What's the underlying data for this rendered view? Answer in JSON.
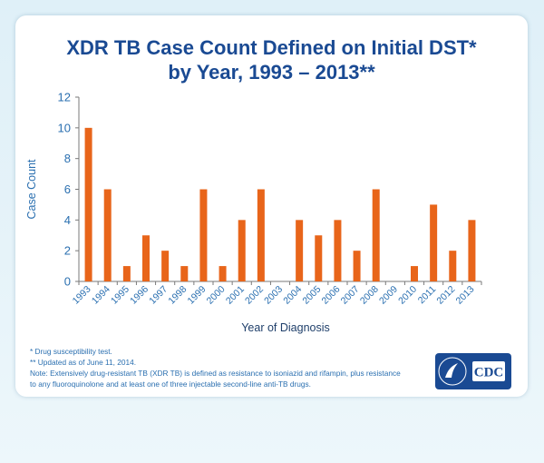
{
  "header": {
    "title_line1": "XDR TB Case Count Defined on Initial DST*",
    "title_line2": "by Year, 1993 – 2013**"
  },
  "footnotes": {
    "note1": "* Drug susceptibility test.",
    "note2": "** Updated as of June 11, 2014.",
    "note3": "Note: Extensively drug-resistant TB (XDR TB) is defined as resistance to isoniazid and rifampin, plus resistance",
    "note4": "to any fluoroquinolone and at least one of three injectable second-line anti-TB drugs."
  },
  "logo": {
    "text": "CDC"
  },
  "colors": {
    "bar": "#e8651a",
    "title": "#1a4a93",
    "text": "#2a6fb0",
    "axis": "#7a7a7a"
  },
  "chart_data": {
    "type": "bar",
    "categories": [
      "1993",
      "1994",
      "1995",
      "1996",
      "1997",
      "1998",
      "1999",
      "2000",
      "2001",
      "2002",
      "2003",
      "2004",
      "2005",
      "2006",
      "2007",
      "2008",
      "2009",
      "2010",
      "2011",
      "2012",
      "2013"
    ],
    "values": [
      10,
      6,
      1,
      3,
      2,
      1,
      6,
      1,
      4,
      6,
      0,
      4,
      3,
      4,
      2,
      6,
      0,
      1,
      5,
      2,
      4
    ],
    "xlabel": "Year of Diagnosis",
    "ylabel": "Case Count",
    "ylim": [
      0,
      12
    ],
    "yticks": [
      0,
      2,
      4,
      6,
      8,
      10,
      12
    ],
    "grid": false,
    "legend": "none"
  }
}
